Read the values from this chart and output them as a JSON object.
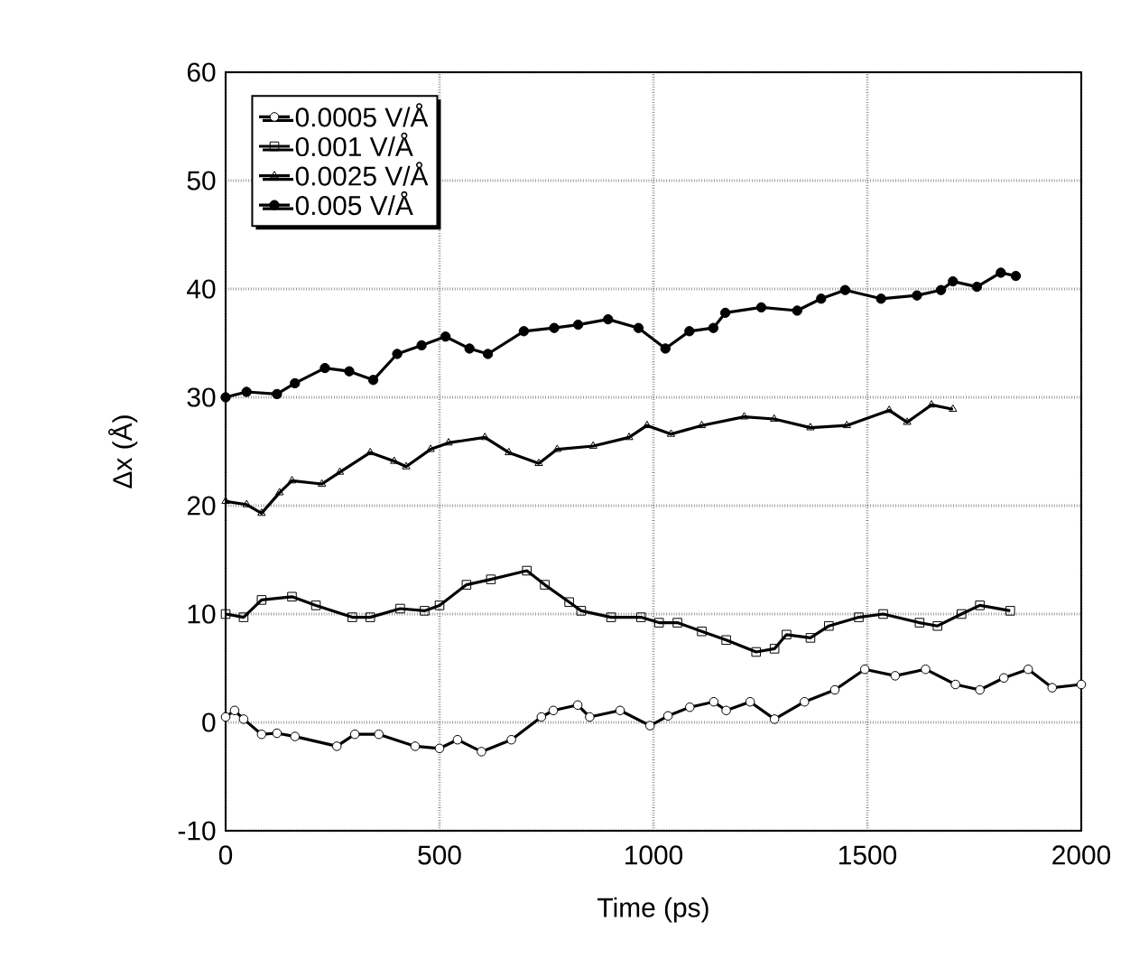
{
  "chart_data": {
    "type": "line",
    "xlabel": "Time (ps)",
    "ylabel": "Δx (Å)",
    "xlim": [
      0,
      2000
    ],
    "ylim": [
      -10,
      60
    ],
    "xticks": [
      0,
      500,
      1000,
      1500,
      2000
    ],
    "yticks": [
      -10,
      0,
      10,
      20,
      30,
      40,
      50,
      60
    ],
    "grid": true,
    "legend": "top left",
    "series": [
      {
        "name": "0.0005 V/Å",
        "color": "#000000",
        "marker": "circle",
        "x": [
          0,
          21,
          42,
          84,
          120,
          162,
          260,
          302,
          358,
          443,
          500,
          542,
          598,
          668,
          738,
          766,
          823,
          851,
          922,
          992,
          1034,
          1085,
          1141,
          1170,
          1226,
          1283,
          1353,
          1424,
          1494,
          1565,
          1636,
          1706,
          1763,
          1819,
          1876,
          1932,
          2000
        ],
        "values": [
          0.5,
          1.1,
          0.3,
          -1.1,
          -1.0,
          -1.3,
          -2.2,
          -1.1,
          -1.1,
          -2.2,
          -2.4,
          -1.6,
          -2.7,
          -1.6,
          0.5,
          1.1,
          1.6,
          0.5,
          1.1,
          -0.3,
          0.6,
          1.4,
          1.9,
          1.1,
          1.9,
          0.3,
          1.9,
          3.0,
          4.9,
          4.3,
          4.9,
          3.5,
          3.0,
          4.1,
          4.9,
          3.2,
          3.5
        ]
      },
      {
        "name": "0.001 V/Å",
        "color": "#000000",
        "marker": "square",
        "x": [
          0,
          42,
          84,
          155,
          211,
          296,
          338,
          408,
          465,
          500,
          563,
          620,
          704,
          746,
          803,
          831,
          901,
          971,
          1013,
          1056,
          1113,
          1170,
          1240,
          1283,
          1311,
          1367,
          1410,
          1480,
          1537,
          1622,
          1664,
          1720,
          1763,
          1834
        ],
        "values": [
          10.0,
          9.7,
          11.3,
          11.6,
          10.8,
          9.7,
          9.7,
          10.5,
          10.3,
          10.8,
          12.7,
          13.2,
          14.0,
          12.7,
          11.1,
          10.3,
          9.7,
          9.7,
          9.2,
          9.2,
          8.4,
          7.6,
          6.5,
          6.8,
          8.1,
          7.8,
          8.9,
          9.7,
          10.0,
          9.2,
          8.9,
          10.0,
          10.8,
          10.3
        ]
      },
      {
        "name": "0.0025 V/Å",
        "color": "#000000",
        "marker": "triangle",
        "x": [
          0,
          49,
          84,
          126,
          155,
          225,
          267,
          338,
          394,
          422,
          479,
          521,
          606,
          662,
          732,
          775,
          859,
          943,
          985,
          1041,
          1113,
          1212,
          1282,
          1367,
          1452,
          1551,
          1593,
          1650,
          1700
        ],
        "values": [
          20.4,
          20.1,
          19.3,
          21.2,
          22.3,
          22.0,
          23.1,
          24.9,
          24.1,
          23.6,
          25.2,
          25.8,
          26.3,
          24.9,
          23.9,
          25.2,
          25.5,
          26.3,
          27.4,
          26.6,
          27.4,
          28.2,
          28.0,
          27.2,
          27.4,
          28.8,
          27.7,
          29.3,
          28.9
        ]
      },
      {
        "name": "0.005 V/Å",
        "color": "#000000",
        "marker": "circle",
        "x": [
          0,
          49,
          120,
          162,
          232,
          289,
          345,
          401,
          458,
          514,
          570,
          613,
          697,
          768,
          824,
          894,
          965,
          1028,
          1084,
          1140,
          1168,
          1252,
          1336,
          1392,
          1448,
          1532,
          1616,
          1672,
          1700,
          1756,
          1812,
          1847
        ],
        "values": [
          30.0,
          30.5,
          30.3,
          31.3,
          32.7,
          32.4,
          31.6,
          34.0,
          34.8,
          35.6,
          34.5,
          34.0,
          36.1,
          36.4,
          36.7,
          37.2,
          36.4,
          34.5,
          36.1,
          36.4,
          37.8,
          38.3,
          38.0,
          39.1,
          39.9,
          39.1,
          39.4,
          39.9,
          40.7,
          40.2,
          41.5,
          41.2
        ]
      }
    ]
  }
}
